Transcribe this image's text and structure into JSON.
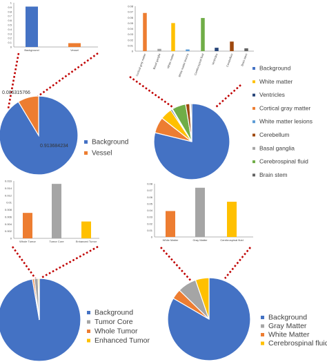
{
  "colors": {
    "background": "#4472C4",
    "orange": "#ED7D31",
    "gray": "#A5A5A5",
    "yellow": "#FFC000",
    "navy": "#264478",
    "light_blue": "#5B9BD5",
    "brown": "#9E480E",
    "green": "#70AD47",
    "connector": "#C00000"
  },
  "chart_data": [
    {
      "type": "bar",
      "categories": [
        "Background",
        "Vessel"
      ],
      "values": [
        0.913684234,
        0.086315766
      ],
      "colors": [
        "#4472C4",
        "#ED7D31"
      ],
      "ylim": [
        0,
        1
      ],
      "yticks": [
        "0",
        "0.1",
        "0.2",
        "0.3",
        "0.4",
        "0.5",
        "0.6",
        "0.7",
        "0.8",
        "0.9",
        "1"
      ]
    },
    {
      "type": "pie",
      "labels": [
        "Background",
        "Vessel"
      ],
      "values": [
        0.913684234,
        0.086315766
      ],
      "colors": [
        "#4472C4",
        "#ED7D31"
      ],
      "data_labels": [
        "0.913684234",
        "0.086315766"
      ],
      "legend": [
        "Background",
        "Vessel"
      ],
      "legend_position": "right"
    },
    {
      "type": "bar",
      "categories": [
        "Cortical gray matter",
        "Basal ganglia",
        "White matter",
        "White matter lesions",
        "Cerebrospinal fluid",
        "Ventricles",
        "Cerebellum",
        "Brain stem"
      ],
      "values": [
        0.068,
        0.004,
        0.05,
        0.003,
        0.059,
        0.006,
        0.017,
        0.005
      ],
      "colors": [
        "#ED7D31",
        "#A5A5A5",
        "#FFC000",
        "#5B9BD5",
        "#70AD47",
        "#264478",
        "#9E480E",
        "#636363"
      ],
      "ylim": [
        0,
        0.08
      ],
      "yticks": [
        "0",
        "0.01",
        "0.02",
        "0.03",
        "0.04",
        "0.05",
        "0.06",
        "0.07",
        "0.08"
      ]
    },
    {
      "type": "pie",
      "labels": [
        "Background",
        "White matter",
        "Ventricles",
        "Cortical gray matter",
        "White matter lesions",
        "Cerebellum",
        "Basal ganglia",
        "Cerebrospinal fluid",
        "Brain stem"
      ],
      "values": [
        0.788,
        0.05,
        0.006,
        0.068,
        0.003,
        0.017,
        0.004,
        0.059,
        0.005
      ],
      "pie_order": [
        0,
        3,
        1,
        2,
        4,
        7,
        5,
        6,
        8
      ],
      "colors": [
        "#4472C4",
        "#FFC000",
        "#264478",
        "#ED7D31",
        "#5B9BD5",
        "#9E480E",
        "#A5A5A5",
        "#70AD47",
        "#636363"
      ],
      "legend": [
        "Background",
        "White matter",
        "Ventricles",
        "Cortical gray matter",
        "White matter lesions",
        "Cerebellum",
        "Basal ganglia",
        "Cerebrospinal fluid",
        "Brain stem"
      ],
      "legend_position": "right"
    },
    {
      "type": "bar",
      "categories": [
        "Whole Tumor",
        "Tumor Core",
        "Enhanced Tumor"
      ],
      "values": [
        0.0071,
        0.0152,
        0.0047
      ],
      "colors": [
        "#ED7D31",
        "#A5A5A5",
        "#FFC000"
      ],
      "ylim": [
        0,
        0.016
      ],
      "yticks": [
        "0",
        "0.002",
        "0.004",
        "0.006",
        "0.008",
        "0.01",
        "0.012",
        "0.014",
        "0.016"
      ]
    },
    {
      "type": "pie",
      "labels": [
        "Background",
        "Tumor Core",
        "Whole Tumor",
        "Enhanced Tumor"
      ],
      "values": [
        0.973,
        0.0152,
        0.0071,
        0.0047
      ],
      "pie_order": [
        0,
        2,
        1,
        3
      ],
      "colors": [
        "#4472C4",
        "#A5A5A5",
        "#ED7D31",
        "#FFC000"
      ],
      "legend": [
        "Background",
        "Tumor Core",
        "Whole Tumor",
        "Enhanced Tumor"
      ],
      "legend_position": "right"
    },
    {
      "type": "bar",
      "categories": [
        "White Matter",
        "Gray Matter",
        "Cerebrospinal fluid"
      ],
      "values": [
        0.039,
        0.074,
        0.053
      ],
      "colors": [
        "#ED7D31",
        "#A5A5A5",
        "#FFC000"
      ],
      "ylim": [
        0,
        0.08
      ],
      "yticks": [
        "0",
        "0.01",
        "0.02",
        "0.03",
        "0.04",
        "0.05",
        "0.06",
        "0.07",
        "0.08"
      ]
    },
    {
      "type": "pie",
      "labels": [
        "Background",
        "Gray Matter",
        "White Matter",
        "Cerebrospinal fluid"
      ],
      "values": [
        0.834,
        0.074,
        0.039,
        0.053
      ],
      "pie_order": [
        0,
        2,
        1,
        3
      ],
      "colors": [
        "#4472C4",
        "#A5A5A5",
        "#ED7D31",
        "#FFC000"
      ],
      "legend": [
        "Background",
        "Gray Matter",
        "White Matter",
        "Cerebrospinal fluid"
      ],
      "legend_position": "right"
    }
  ]
}
